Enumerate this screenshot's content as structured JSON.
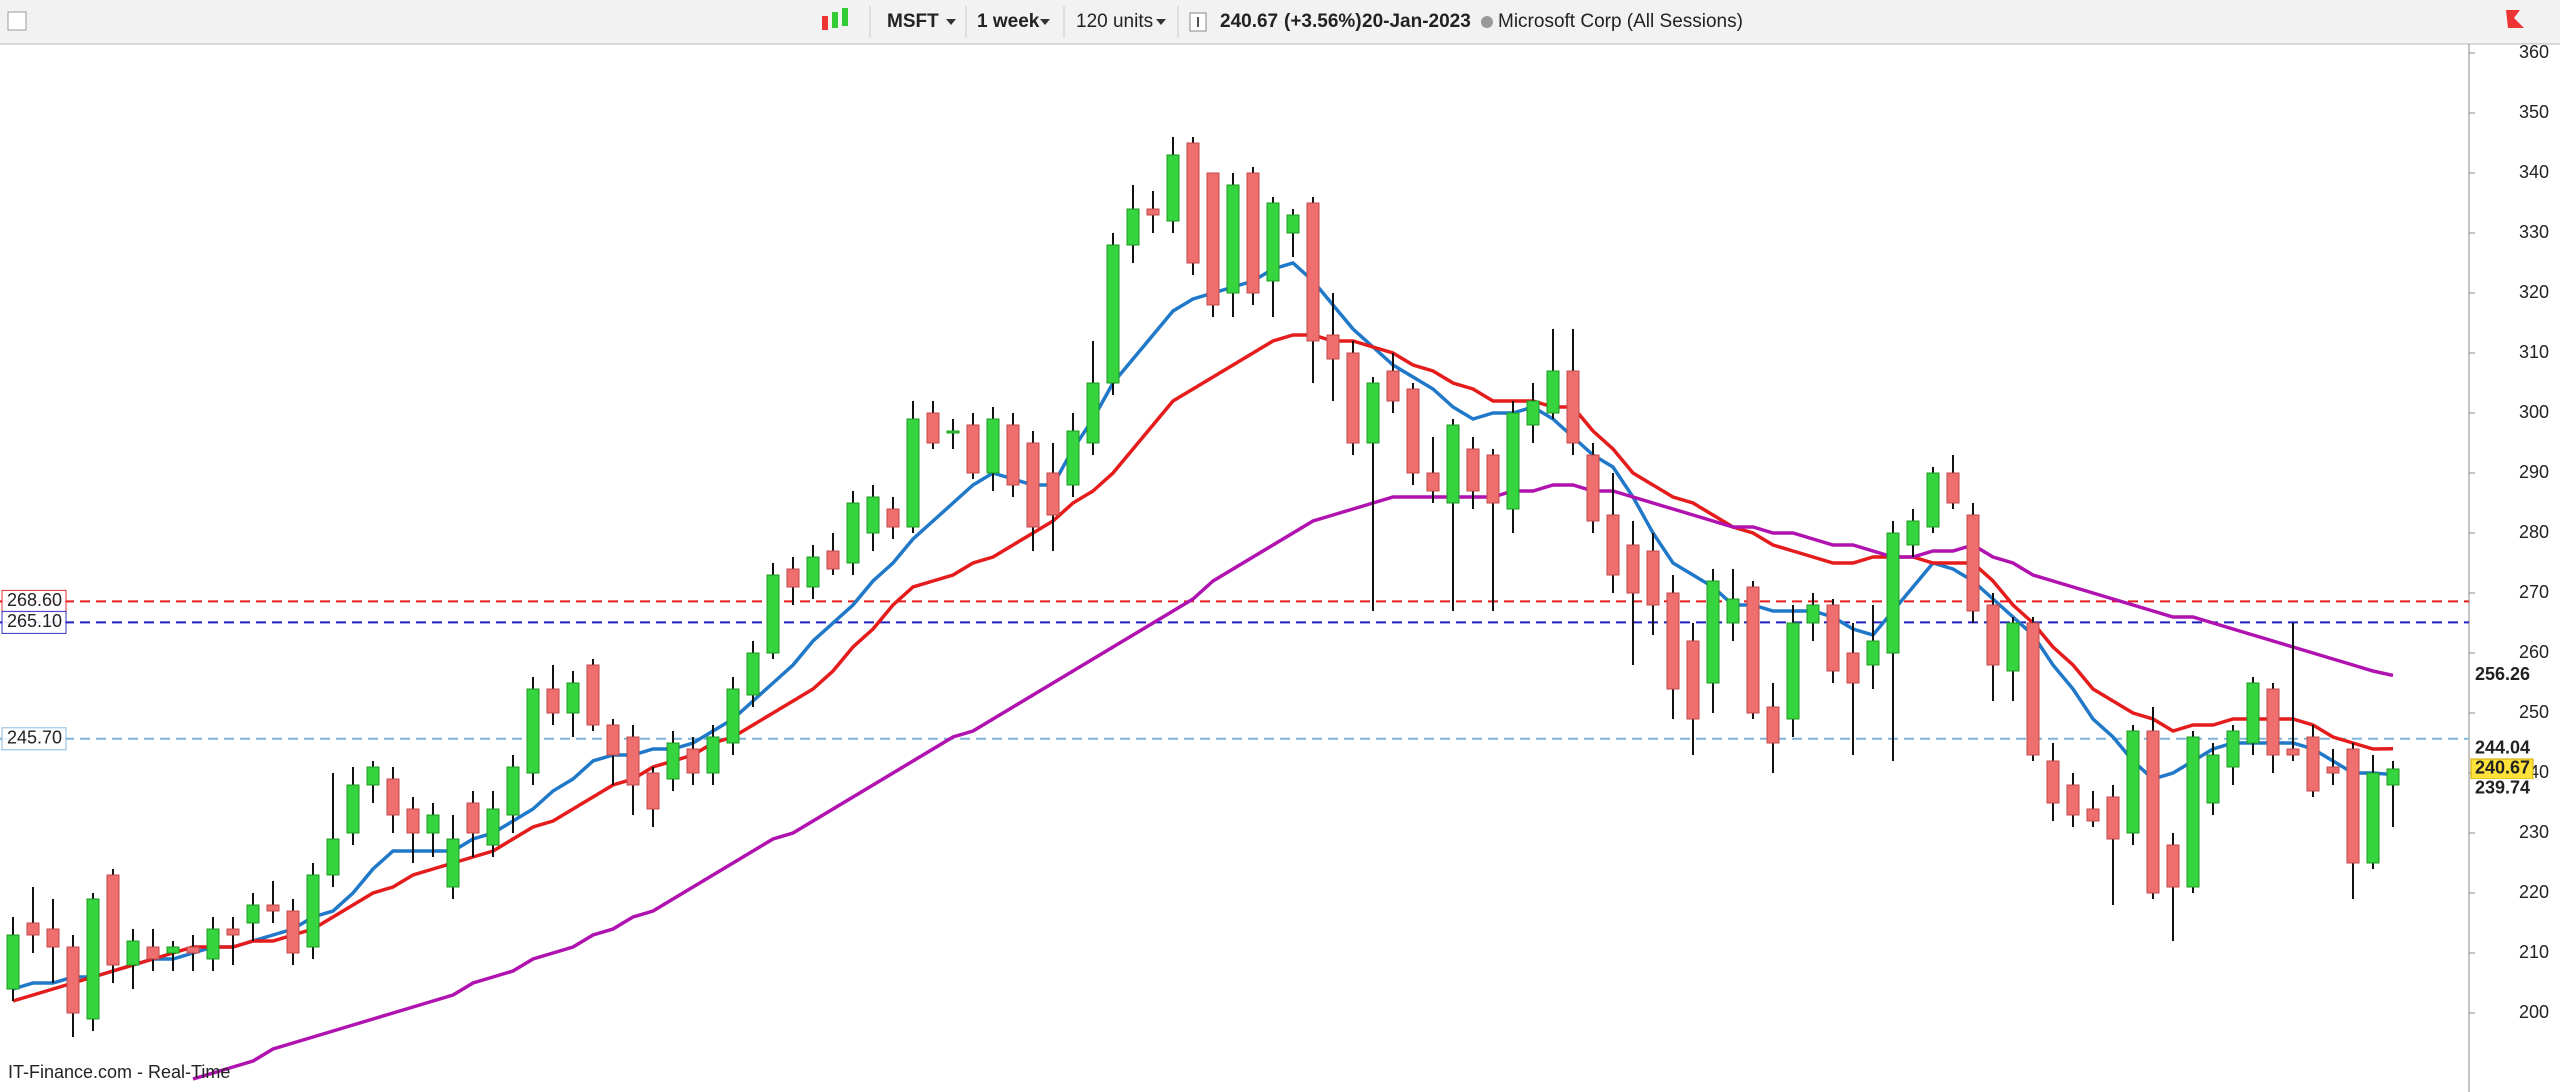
{
  "chart_data": {
    "type": "candlestick",
    "toolbar": {
      "symbol": "MSFT",
      "interval": "1 week",
      "units": "120 units",
      "change": "(+3.56%)",
      "date": "20-Jan-2023",
      "description": "Microsoft Corp (All Sessions)"
    },
    "footer": "IT-Finance.com - Real-Time",
    "up_color": "#36d43e",
    "down_color": "#ef6f6f",
    "ylim": [
      187.5,
      361.5
    ],
    "yticks": [
      200,
      210,
      220,
      230,
      240,
      250,
      260,
      270,
      280,
      290,
      300,
      310,
      320,
      330,
      340,
      350,
      360
    ],
    "open": [
      204,
      215,
      214,
      211,
      199,
      223,
      208,
      211,
      210,
      211,
      209,
      214,
      215,
      218,
      217,
      211,
      223,
      230,
      238,
      239,
      234,
      230,
      221,
      235,
      228,
      233,
      240,
      254,
      250,
      258,
      248,
      246,
      240,
      239,
      244,
      240,
      245,
      253,
      260,
      274,
      271,
      277,
      275,
      280,
      284,
      281,
      300,
      297,
      298,
      290,
      298,
      295,
      290,
      288,
      295,
      305,
      328,
      334,
      332,
      345,
      340,
      320,
      340,
      322,
      330,
      335,
      313,
      310,
      295,
      307,
      304,
      290,
      285,
      294,
      293,
      284,
      298,
      300,
      307,
      293,
      283,
      278,
      277,
      270,
      262,
      255,
      265,
      271,
      251,
      249,
      265,
      268,
      260,
      258,
      260,
      278,
      281,
      290,
      283,
      268,
      257,
      265,
      242,
      238,
      234,
      236,
      230,
      247,
      228,
      221,
      235,
      241,
      245,
      254,
      244,
      246,
      241,
      244,
      225,
      238
    ],
    "high": [
      216,
      221,
      219,
      213,
      220,
      224,
      214,
      214,
      212,
      213,
      216,
      216,
      220,
      222,
      219,
      225,
      240,
      241,
      242,
      241,
      236,
      235,
      233,
      237,
      237,
      243,
      256,
      258,
      257,
      259,
      249,
      248,
      241,
      247,
      246,
      248,
      256,
      262,
      275,
      276,
      278,
      280,
      287,
      288,
      286,
      302,
      302,
      299,
      300,
      301,
      300,
      297,
      295,
      300,
      312,
      330,
      338,
      337,
      346,
      346,
      340,
      340,
      341,
      336,
      334,
      336,
      320,
      312,
      306,
      310,
      305,
      296,
      299,
      296,
      294,
      302,
      305,
      314,
      314,
      295,
      290,
      282,
      280,
      273,
      265,
      274,
      274,
      272,
      255,
      268,
      270,
      269,
      265,
      268,
      282,
      284,
      291,
      293,
      285,
      270,
      266,
      266,
      245,
      240,
      237,
      238,
      248,
      251,
      230,
      247,
      245,
      248,
      256,
      255,
      265,
      248,
      244,
      245,
      243,
      242
    ],
    "low": [
      202,
      210,
      205,
      196,
      197,
      205,
      204,
      207,
      207,
      207,
      207,
      208,
      212,
      215,
      208,
      209,
      221,
      228,
      235,
      230,
      225,
      226,
      219,
      226,
      226,
      230,
      238,
      248,
      246,
      247,
      238,
      233,
      231,
      237,
      238,
      238,
      243,
      251,
      259,
      268,
      269,
      273,
      273,
      277,
      279,
      280,
      294,
      294,
      289,
      287,
      286,
      277,
      277,
      286,
      293,
      303,
      325,
      330,
      330,
      323,
      316,
      316,
      318,
      316,
      326,
      305,
      302,
      293,
      267,
      300,
      288,
      285,
      267,
      284,
      267,
      280,
      295,
      299,
      293,
      280,
      270,
      258,
      263,
      249,
      243,
      250,
      262,
      249,
      240,
      246,
      262,
      255,
      243,
      254,
      242,
      276,
      280,
      284,
      265,
      252,
      252,
      242,
      232,
      231,
      231,
      218,
      228,
      219,
      212,
      220,
      233,
      238,
      243,
      240,
      242,
      236,
      238,
      219,
      224,
      231
    ],
    "close": [
      213,
      213,
      211,
      200,
      219,
      208,
      212,
      209,
      211,
      210,
      214,
      213,
      218,
      217,
      210,
      223,
      229,
      238,
      241,
      233,
      230,
      233,
      229,
      230,
      234,
      241,
      254,
      250,
      255,
      248,
      243,
      238,
      234,
      245,
      240,
      246,
      254,
      260,
      273,
      271,
      276,
      274,
      285,
      286,
      281,
      299,
      295,
      297,
      290,
      299,
      288,
      281,
      283,
      297,
      305,
      328,
      334,
      333,
      343,
      325,
      318,
      338,
      320,
      335,
      333,
      312,
      309,
      295,
      305,
      302,
      290,
      287,
      298,
      287,
      285,
      300,
      302,
      307,
      295,
      282,
      273,
      270,
      268,
      254,
      249,
      272,
      269,
      250,
      245,
      265,
      268,
      257,
      255,
      262,
      280,
      282,
      290,
      285,
      267,
      258,
      265,
      243,
      235,
      233,
      232,
      229,
      247,
      220,
      221,
      246,
      243,
      247,
      255,
      243,
      243,
      237,
      240,
      225,
      240,
      240.67
    ],
    "overlays": [
      {
        "color": "#1f78c8",
        "values": [
          204,
          205,
          205,
          206,
          206,
          207,
          208,
          209,
          209,
          210,
          211,
          211,
          212,
          213,
          214,
          216,
          217,
          220,
          224,
          227,
          227,
          227,
          227,
          229,
          230,
          232,
          234,
          237,
          239,
          242,
          243,
          243,
          244,
          244,
          245,
          247,
          249,
          252,
          255,
          258,
          262,
          265,
          268,
          272,
          275,
          279,
          282,
          285,
          288,
          290,
          289,
          288,
          288,
          294,
          299,
          305,
          309,
          313,
          317,
          319,
          320,
          321,
          322,
          324,
          325,
          322,
          318,
          314,
          311,
          308,
          306,
          304,
          301,
          299,
          300,
          300,
          301,
          299,
          296,
          293,
          291,
          286,
          280,
          275,
          273,
          271,
          268,
          268,
          267,
          267,
          267,
          266,
          264,
          263,
          267,
          271,
          275,
          274,
          272,
          269,
          266,
          263,
          258,
          254,
          249,
          246,
          242,
          239,
          240,
          242,
          244,
          245,
          245,
          245,
          245,
          244,
          242,
          240,
          240,
          239.74
        ]
      },
      {
        "color": "#e51c1c",
        "values": [
          202,
          203,
          204,
          205,
          206,
          207,
          208,
          209,
          210,
          211,
          211,
          211,
          212,
          212,
          213,
          214,
          216,
          218,
          220,
          221,
          223,
          224,
          225,
          226,
          227,
          229,
          231,
          232,
          234,
          236,
          238,
          239,
          241,
          242,
          243,
          245,
          246,
          248,
          250,
          252,
          254,
          257,
          261,
          264,
          268,
          271,
          272,
          273,
          275,
          276,
          278,
          280,
          282,
          285,
          287,
          290,
          294,
          298,
          302,
          304,
          306,
          308,
          310,
          312,
          313,
          313,
          312,
          312,
          311,
          310,
          308,
          307,
          305,
          304,
          302,
          302,
          302,
          301,
          301,
          297,
          294,
          290,
          288,
          286,
          285,
          283,
          281,
          280,
          278,
          277,
          276,
          275,
          275,
          276,
          276,
          276,
          275,
          275,
          275,
          272,
          268,
          265,
          261,
          258,
          254,
          252,
          250,
          249,
          247,
          248,
          248,
          249,
          249,
          249,
          249,
          248,
          246,
          245,
          244,
          244.04
        ]
      },
      {
        "color": "#b012b0",
        "values": [
          null,
          null,
          null,
          null,
          null,
          null,
          null,
          null,
          null,
          189,
          190,
          191,
          192,
          194,
          195,
          196,
          197,
          198,
          199,
          200,
          201,
          202,
          203,
          205,
          206,
          207,
          209,
          210,
          211,
          213,
          214,
          216,
          217,
          219,
          221,
          223,
          225,
          227,
          229,
          230,
          232,
          234,
          236,
          238,
          240,
          242,
          244,
          246,
          247,
          249,
          251,
          253,
          255,
          257,
          259,
          261,
          263,
          265,
          267,
          269,
          272,
          274,
          276,
          278,
          280,
          282,
          283,
          284,
          285,
          286,
          286,
          286,
          286,
          286,
          286,
          287,
          287,
          288,
          288,
          287,
          287,
          286,
          285,
          284,
          283,
          282,
          281,
          281,
          280,
          280,
          279,
          278,
          278,
          277,
          276,
          276,
          277,
          277,
          278,
          276,
          275,
          273,
          272,
          271,
          270,
          269,
          268,
          267,
          266,
          266,
          265,
          264,
          263,
          262,
          261,
          260,
          259,
          258,
          257,
          256.26
        ]
      }
    ],
    "hlines": [
      {
        "value": 268.6,
        "label": "268.60",
        "color": "#e51c1c"
      },
      {
        "value": 265.1,
        "label": "265.10",
        "color": "#2020c0"
      },
      {
        "value": 245.7,
        "label": "245.70",
        "color": "#7fb4dc"
      }
    ]
  }
}
